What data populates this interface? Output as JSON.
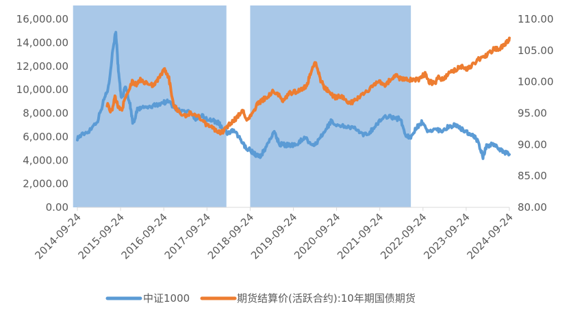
{
  "chart_data": {
    "type": "line",
    "title": "",
    "x_ticks": [
      "2014-09-24",
      "2015-09-24",
      "2016-09-24",
      "2017-09-24",
      "2018-09-24",
      "2019-09-24",
      "2020-09-24",
      "2021-09-24",
      "2022-09-24",
      "2023-09-24",
      "2024-09-24"
    ],
    "x_range": [
      2014.73,
      2024.73
    ],
    "y_left": {
      "ylim": [
        0,
        16000
      ],
      "ticks": [
        "0.00",
        "2,000.00",
        "4,000.00",
        "6,000.00",
        "8,000.00",
        "10,000.00",
        "12,000.00",
        "14,000.00",
        "16,000.00"
      ]
    },
    "y_right": {
      "ylim": [
        80,
        110
      ],
      "ticks": [
        "80.00",
        "85.00",
        "90.00",
        "95.00",
        "100.00",
        "105.00",
        "110.00"
      ]
    },
    "shaded_periods": [
      [
        2014.63,
        2018.18
      ],
      [
        2018.73,
        2022.45
      ]
    ],
    "shade_color": "#a9c8e8",
    "series": [
      {
        "name": "中证1000",
        "axis": "left",
        "color": "#5b9bd5",
        "points": [
          [
            2014.73,
            5900
          ],
          [
            2014.85,
            6200
          ],
          [
            2015.0,
            6500
          ],
          [
            2015.2,
            7400
          ],
          [
            2015.35,
            9200
          ],
          [
            2015.45,
            10200
          ],
          [
            2015.55,
            13400
          ],
          [
            2015.62,
            15000
          ],
          [
            2015.68,
            11500
          ],
          [
            2015.75,
            9200
          ],
          [
            2015.85,
            10300
          ],
          [
            2015.95,
            8700
          ],
          [
            2016.02,
            7100
          ],
          [
            2016.12,
            8300
          ],
          [
            2016.25,
            8500
          ],
          [
            2016.4,
            8500
          ],
          [
            2016.55,
            8700
          ],
          [
            2016.7,
            8900
          ],
          [
            2016.85,
            9000
          ],
          [
            2016.95,
            8600
          ],
          [
            2017.1,
            8200
          ],
          [
            2017.3,
            8100
          ],
          [
            2017.45,
            7500
          ],
          [
            2017.6,
            7800
          ],
          [
            2017.75,
            7500
          ],
          [
            2017.9,
            7300
          ],
          [
            2018.0,
            7200
          ],
          [
            2018.1,
            6600
          ],
          [
            2018.2,
            6300
          ],
          [
            2018.35,
            6500
          ],
          [
            2018.5,
            5800
          ],
          [
            2018.6,
            5200
          ],
          [
            2018.75,
            4800
          ],
          [
            2018.85,
            4500
          ],
          [
            2018.95,
            4300
          ],
          [
            2019.05,
            4800
          ],
          [
            2019.2,
            5900
          ],
          [
            2019.3,
            6400
          ],
          [
            2019.4,
            5400
          ],
          [
            2019.55,
            5300
          ],
          [
            2019.7,
            5300
          ],
          [
            2019.85,
            5500
          ],
          [
            2020.0,
            6000
          ],
          [
            2020.15,
            5200
          ],
          [
            2020.3,
            5600
          ],
          [
            2020.45,
            6400
          ],
          [
            2020.6,
            7300
          ],
          [
            2020.8,
            6900
          ],
          [
            2021.0,
            6900
          ],
          [
            2021.2,
            6600
          ],
          [
            2021.35,
            6100
          ],
          [
            2021.5,
            6400
          ],
          [
            2021.65,
            7000
          ],
          [
            2021.8,
            7600
          ],
          [
            2021.95,
            7800
          ],
          [
            2022.1,
            7500
          ],
          [
            2022.2,
            7600
          ],
          [
            2022.32,
            6200
          ],
          [
            2022.45,
            5900
          ],
          [
            2022.55,
            6700
          ],
          [
            2022.7,
            7200
          ],
          [
            2022.85,
            6400
          ],
          [
            2023.0,
            6700
          ],
          [
            2023.15,
            6500
          ],
          [
            2023.3,
            6800
          ],
          [
            2023.45,
            7000
          ],
          [
            2023.6,
            6700
          ],
          [
            2023.75,
            6400
          ],
          [
            2023.9,
            6100
          ],
          [
            2024.0,
            5600
          ],
          [
            2024.12,
            4300
          ],
          [
            2024.2,
            5200
          ],
          [
            2024.35,
            5400
          ],
          [
            2024.5,
            5000
          ],
          [
            2024.6,
            4700
          ],
          [
            2024.73,
            4500
          ]
        ]
      },
      {
        "name": "期货结算价(活跃合约):10年期国债期货",
        "axis": "right",
        "color": "#ed7d31",
        "points": [
          [
            2015.42,
            96.5
          ],
          [
            2015.52,
            95.2
          ],
          [
            2015.6,
            97.5
          ],
          [
            2015.68,
            96.0
          ],
          [
            2015.75,
            95.5
          ],
          [
            2015.85,
            97.5
          ],
          [
            2016.0,
            100.0
          ],
          [
            2016.1,
            99.5
          ],
          [
            2016.2,
            100.5
          ],
          [
            2016.3,
            99.8
          ],
          [
            2016.45,
            99.5
          ],
          [
            2016.55,
            99.8
          ],
          [
            2016.65,
            101.0
          ],
          [
            2016.75,
            102.0
          ],
          [
            2016.85,
            100.5
          ],
          [
            2016.95,
            96.5
          ],
          [
            2017.05,
            95.5
          ],
          [
            2017.2,
            94.5
          ],
          [
            2017.35,
            95.0
          ],
          [
            2017.5,
            94.8
          ],
          [
            2017.65,
            93.5
          ],
          [
            2017.8,
            93.0
          ],
          [
            2017.95,
            92.2
          ],
          [
            2018.05,
            91.8
          ],
          [
            2018.15,
            92.5
          ],
          [
            2018.3,
            93.5
          ],
          [
            2018.45,
            94.5
          ],
          [
            2018.55,
            95.5
          ],
          [
            2018.65,
            94.0
          ],
          [
            2018.75,
            94.5
          ],
          [
            2018.9,
            96.5
          ],
          [
            2019.0,
            97.0
          ],
          [
            2019.1,
            97.5
          ],
          [
            2019.25,
            98.5
          ],
          [
            2019.4,
            97.8
          ],
          [
            2019.5,
            97.0
          ],
          [
            2019.65,
            98.2
          ],
          [
            2019.8,
            98.5
          ],
          [
            2019.95,
            99.0
          ],
          [
            2020.05,
            99.5
          ],
          [
            2020.15,
            102.0
          ],
          [
            2020.25,
            103.2
          ],
          [
            2020.35,
            100.5
          ],
          [
            2020.45,
            99.0
          ],
          [
            2020.55,
            98.5
          ],
          [
            2020.7,
            97.5
          ],
          [
            2020.85,
            97.8
          ],
          [
            2021.0,
            96.5
          ],
          [
            2021.15,
            97.0
          ],
          [
            2021.3,
            97.8
          ],
          [
            2021.45,
            98.5
          ],
          [
            2021.6,
            99.5
          ],
          [
            2021.7,
            100.3
          ],
          [
            2021.85,
            99.5
          ],
          [
            2022.0,
            100.5
          ],
          [
            2022.1,
            101.0
          ],
          [
            2022.2,
            100.5
          ],
          [
            2022.35,
            100.5
          ],
          [
            2022.5,
            100.2
          ],
          [
            2022.65,
            100.5
          ],
          [
            2022.78,
            101.3
          ],
          [
            2022.88,
            100.0
          ],
          [
            2023.0,
            99.8
          ],
          [
            2023.1,
            100.8
          ],
          [
            2023.2,
            100.2
          ],
          [
            2023.35,
            101.5
          ],
          [
            2023.5,
            102.0
          ],
          [
            2023.62,
            102.5
          ],
          [
            2023.75,
            102.0
          ],
          [
            2023.88,
            102.8
          ],
          [
            2024.0,
            103.5
          ],
          [
            2024.12,
            104.0
          ],
          [
            2024.25,
            104.5
          ],
          [
            2024.38,
            105.3
          ],
          [
            2024.5,
            105.2
          ],
          [
            2024.6,
            105.8
          ],
          [
            2024.7,
            106.5
          ],
          [
            2024.73,
            107.0
          ]
        ]
      }
    ],
    "legend": {
      "position": "bottom"
    }
  }
}
